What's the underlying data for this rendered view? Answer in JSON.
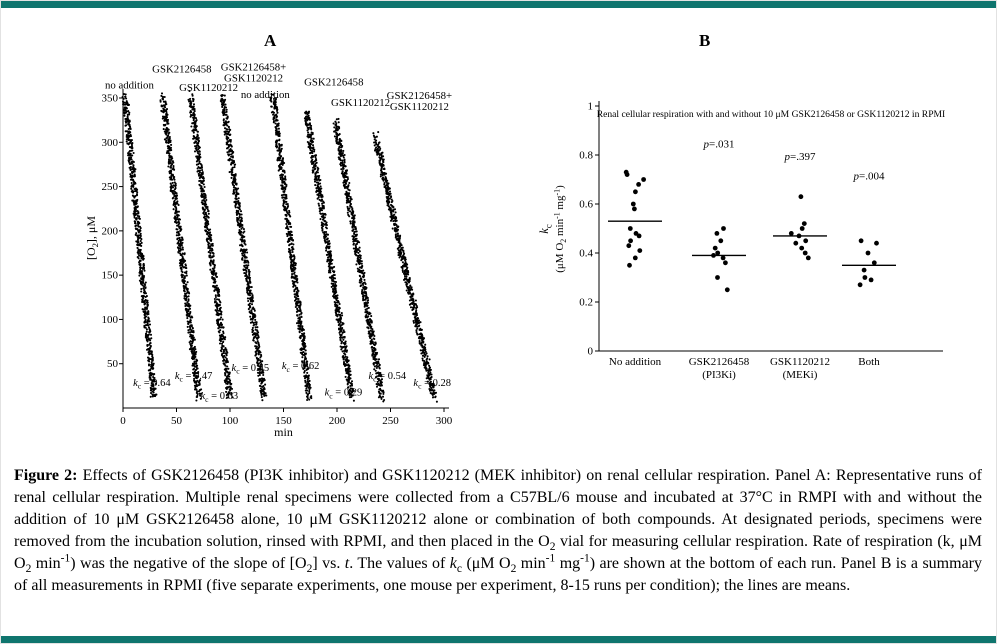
{
  "page": {
    "bar_color": "#0f756e"
  },
  "panels": {
    "a_label": "A",
    "b_label": "B"
  },
  "caption": {
    "segments": [
      {
        "text": "Figure 2: ",
        "bold": true
      },
      {
        "text": "Effects of GSK2126458 (PI3K inhibitor) and GSK1120212 (MEK inhibitor) on renal cellular respiration. Panel A: Representative runs of renal cellular respiration. Multiple renal specimens were collected from a C57BL/6 mouse and incubated at 37°C in RMPI with and without the addition of 10 μM GSK2126458 alone, 10 μM GSK1120212 alone or combination of both compounds. At designated periods, specimens were removed from the incubation solution, rinsed with RPMI, and then placed in the O"
      },
      {
        "text": "2",
        "sub": true
      },
      {
        "text": " vial for measuring cellular respiration. Rate of respiration (k, μM O"
      },
      {
        "text": "2",
        "sub": true
      },
      {
        "text": " min"
      },
      {
        "text": "-1",
        "sup": true
      },
      {
        "text": ") was the negative of the slope of [O"
      },
      {
        "text": "2",
        "sub": true
      },
      {
        "text": "] vs. "
      },
      {
        "text": "t",
        "italic": true
      },
      {
        "text": ". The values of "
      },
      {
        "text": "k",
        "italic": true
      },
      {
        "text": "c",
        "sub": true
      },
      {
        "text": " (μM O"
      },
      {
        "text": "2",
        "sub": true
      },
      {
        "text": " min"
      },
      {
        "text": "-1",
        "sup": true
      },
      {
        "text": " mg"
      },
      {
        "text": "-1",
        "sup": true
      },
      {
        "text": ") are shown at the bottom of each run. Panel B is a summary of all measurements in RPMI (five separate experiments, one mouse per experiment, 8-15 runs per condition); the lines are means."
      }
    ]
  },
  "chart_data": [
    {
      "type": "scatter",
      "panel": "A",
      "xlabel": "min",
      "ylabel_segs": [
        {
          "t": "[O"
        },
        {
          "t": "2",
          "sub": true
        },
        {
          "t": "], μM"
        }
      ],
      "xlim": [
        0,
        300
      ],
      "ylim": [
        0,
        350
      ],
      "xticks": [
        0,
        50,
        100,
        150,
        200,
        250,
        300
      ],
      "yticks": [
        50,
        100,
        150,
        200,
        250,
        300,
        350
      ],
      "points_per_trace": 650,
      "traces": [
        {
          "condition": "no addition",
          "k_c": 0.64,
          "t": [
            2,
            29
          ],
          "o2": [
            352,
            12
          ],
          "label_lines": [
            "no addition"
          ],
          "label_at": [
            6,
            361
          ],
          "k_at": [
            27,
            25
          ]
        },
        {
          "condition": "GSK2126458",
          "k_c": 0.47,
          "t": [
            37,
            71
          ],
          "o2": [
            352,
            12
          ],
          "label_lines": [
            "GSK2126458"
          ],
          "label_at": [
            55,
            379
          ],
          "k_at": [
            66,
            33
          ]
        },
        {
          "condition": "GSK1120212",
          "k_c": 0.63,
          "t": [
            63,
            100
          ],
          "o2": [
            352,
            12
          ],
          "label_lines": [
            "GSK1120212"
          ],
          "label_at": [
            80,
            358
          ],
          "k_at": [
            90,
            10
          ]
        },
        {
          "condition": "GSK2126458+GSK1120212",
          "k_c": 0.45,
          "t": [
            93,
            132
          ],
          "o2": [
            352,
            12
          ],
          "label_lines": [
            "GSK2126458+",
            "GSK1120212"
          ],
          "label_at": [
            122,
            381
          ],
          "k_at": [
            119,
            42
          ]
        },
        {
          "condition": "no addition",
          "k_c": 0.62,
          "t": [
            140,
            174
          ],
          "o2": [
            352,
            12
          ],
          "label_lines": [
            "no addition"
          ],
          "label_at": [
            133,
            350
          ],
          "k_at": [
            166,
            44
          ]
        },
        {
          "condition": "GSK2126458",
          "k_c": 0.29,
          "t": [
            171,
            214
          ],
          "o2": [
            335,
            12
          ],
          "label_lines": [
            "GSK2126458"
          ],
          "label_at": [
            197,
            364
          ],
          "k_at": [
            206,
            14
          ]
        },
        {
          "condition": "GSK1120212",
          "k_c": 0.54,
          "t": [
            199,
            242
          ],
          "o2": [
            322,
            12
          ],
          "label_lines": [
            "GSK1120212"
          ],
          "label_at": [
            222,
            341
          ],
          "k_at": [
            247,
            33
          ]
        },
        {
          "condition": "GSK2126458+GSK1120212",
          "k_c": 0.28,
          "t": [
            236,
            291
          ],
          "o2": [
            305,
            12
          ],
          "label_lines": [
            "GSK2126458+",
            "GSK1120212"
          ],
          "label_at": [
            277,
            349
          ],
          "k_at": [
            289,
            25
          ]
        }
      ]
    },
    {
      "type": "scatter",
      "panel": "B",
      "title": "Renal cellular respiration with and without 10 μM GSK2126458 or GSK1120212 in RPMI",
      "ylabel_line1": [
        {
          "t": "k",
          "italic": true
        },
        {
          "t": "c",
          "sub": true
        }
      ],
      "ylabel_line2": [
        {
          "t": "(μM O"
        },
        {
          "t": "2",
          "sub": true
        },
        {
          "t": " min"
        },
        {
          "t": "-1",
          "sup": true
        },
        {
          "t": " mg"
        },
        {
          "t": "-1",
          "sup": true
        },
        {
          "t": ")"
        }
      ],
      "ylim": [
        0,
        1
      ],
      "yticks": [
        0,
        0.2,
        0.4,
        0.6,
        0.8,
        1
      ],
      "legend": "lines are means",
      "groups": [
        {
          "label_lines": [
            "No addition"
          ],
          "mean": 0.53,
          "p": null,
          "p_at": null,
          "values": [
            0.73,
            0.72,
            0.7,
            0.68,
            0.65,
            0.6,
            0.58,
            0.5,
            0.48,
            0.47,
            0.45,
            0.43,
            0.41,
            0.38,
            0.35
          ]
        },
        {
          "label_lines": [
            "GSK2126458",
            "(PI3Ki)"
          ],
          "mean": 0.39,
          "p": ".031",
          "p_at": 0.83,
          "values": [
            0.5,
            0.48,
            0.45,
            0.42,
            0.4,
            0.39,
            0.38,
            0.36,
            0.3,
            0.25
          ]
        },
        {
          "label_lines": [
            "GSK1120212",
            "(MEKi)"
          ],
          "mean": 0.47,
          "p": ".397",
          "p_at": 0.78,
          "values": [
            0.63,
            0.52,
            0.5,
            0.48,
            0.47,
            0.45,
            0.44,
            0.42,
            0.4,
            0.38
          ]
        },
        {
          "label_lines": [
            "Both"
          ],
          "mean": 0.35,
          "p": ".004",
          "p_at": 0.7,
          "values": [
            0.45,
            0.44,
            0.4,
            0.36,
            0.33,
            0.3,
            0.29,
            0.27
          ]
        }
      ]
    }
  ]
}
